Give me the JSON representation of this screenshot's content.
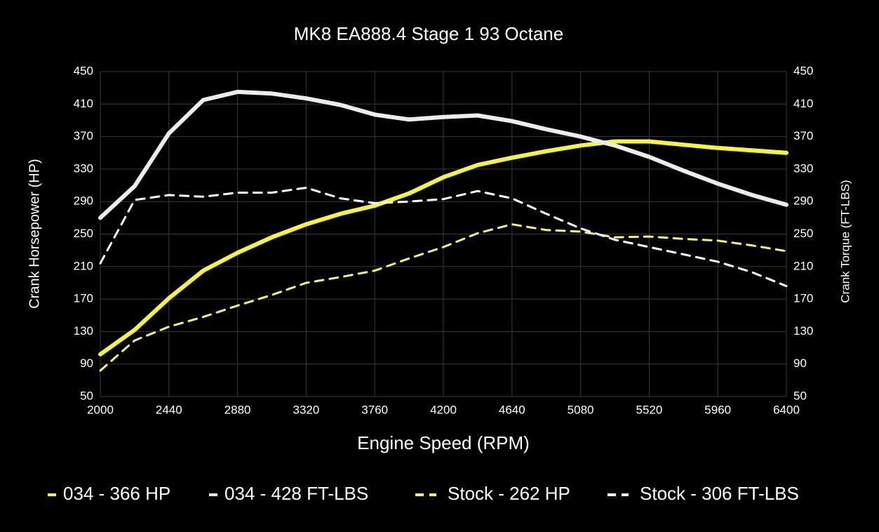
{
  "chart_data": {
    "type": "line",
    "title": "MK8 EA888.4 Stage 1 93 Octane",
    "x_label": "Engine Speed (RPM)",
    "y_label": "Crank Horsepower (HP)",
    "y2_label": "Crank Torque (FT-LBS)",
    "x": [
      2000,
      2220,
      2440,
      2660,
      2880,
      3100,
      3320,
      3540,
      3760,
      3980,
      4200,
      4420,
      4640,
      4860,
      5080,
      5300,
      5520,
      5740,
      5960,
      6180,
      6400
    ],
    "xlim": [
      2000,
      6400
    ],
    "xticks": [
      2000,
      2440,
      2880,
      3320,
      3760,
      4200,
      4640,
      5080,
      5520,
      5960,
      6400
    ],
    "ylim": [
      50,
      450
    ],
    "yticks": [
      50,
      90,
      130,
      170,
      210,
      250,
      290,
      330,
      370,
      410,
      450
    ],
    "y2lim": [
      50,
      450
    ],
    "y2ticks": [
      50,
      90,
      130,
      170,
      210,
      250,
      290,
      330,
      370,
      410,
      450
    ],
    "grid": true,
    "legend": "bottom",
    "series": [
      {
        "name": "034 - 366 HP",
        "color": "#f5f53a",
        "dashed": false,
        "values": [
          102,
          132,
          171,
          205,
          227,
          246,
          262,
          275,
          285,
          300,
          320,
          335,
          344,
          352,
          359,
          364,
          364,
          360,
          356,
          353,
          350
        ]
      },
      {
        "name": "034 - 428 FT-LBS",
        "color": "#ececec",
        "dashed": false,
        "axis": "y2",
        "values": [
          270,
          309,
          374,
          415,
          425,
          423,
          417,
          409,
          397,
          391,
          394,
          396,
          389,
          379,
          370,
          359,
          345,
          328,
          312,
          298,
          286
        ]
      },
      {
        "name": "Stock - 262 HP",
        "color": "#f5f56a",
        "dashed": true,
        "values": [
          82,
          119,
          136,
          148,
          162,
          175,
          190,
          197,
          205,
          220,
          234,
          251,
          262,
          255,
          253,
          246,
          247,
          244,
          242,
          236,
          229
        ]
      },
      {
        "name": "Stock - 306 FT-LBS",
        "color": "#ffffff",
        "dashed": true,
        "axis": "y2",
        "values": [
          214,
          292,
          298,
          296,
          301,
          301,
          307,
          294,
          288,
          290,
          293,
          303,
          294,
          275,
          257,
          243,
          234,
          225,
          216,
          203,
          186
        ]
      }
    ]
  }
}
